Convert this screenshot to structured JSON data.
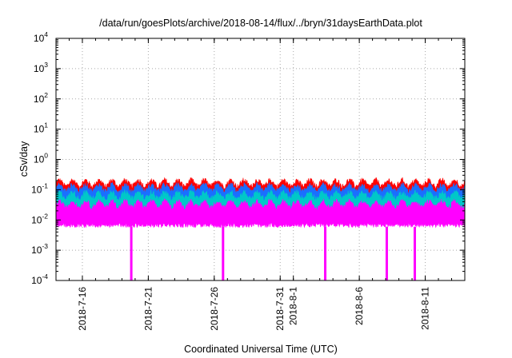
{
  "chart_data": {
    "type": "line",
    "title": "/data/run/goesPlots/archive/2018-08-14/flux/../bryn/31daysEarthData.plot",
    "xlabel": "Coordinated Universal Time (UTC)",
    "ylabel": "cSv/day",
    "y_scale": "log",
    "ylim": [
      0.0001,
      10000
    ],
    "y_ticks": [
      {
        "base": "10",
        "exp": "-4",
        "value": 0.0001
      },
      {
        "base": "10",
        "exp": "-3",
        "value": 0.001
      },
      {
        "base": "10",
        "exp": "-2",
        "value": 0.01
      },
      {
        "base": "10",
        "exp": "-1",
        "value": 0.1
      },
      {
        "base": "10",
        "exp": "0",
        "value": 1
      },
      {
        "base": "10",
        "exp": "1",
        "value": 10
      },
      {
        "base": "10",
        "exp": "2",
        "value": 100
      },
      {
        "base": "10",
        "exp": "3",
        "value": 1000
      },
      {
        "base": "10",
        "exp": "4",
        "value": 10000
      }
    ],
    "xlim": [
      "2018-07-14",
      "2018-08-14"
    ],
    "x_ticks": [
      {
        "label": "2018-7-16",
        "date": "2018-07-16"
      },
      {
        "label": "2018-7-21",
        "date": "2018-07-21"
      },
      {
        "label": "2018-7-26",
        "date": "2018-07-26"
      },
      {
        "label": "2018-7-31",
        "date": "2018-07-31"
      },
      {
        "label": "2018-8-1",
        "date": "2018-08-01"
      },
      {
        "label": "2018-8-6",
        "date": "2018-08-06"
      },
      {
        "label": "2018-8-11",
        "date": "2018-08-11"
      }
    ],
    "grid": true,
    "series": [
      {
        "color": "#ff0000",
        "typical_value": 0.1
      },
      {
        "color": "#1a6fff",
        "typical_value": 0.07
      },
      {
        "color": "#00c8c8",
        "typical_value": 0.04
      },
      {
        "color": "#ff00ff",
        "typical_value": 0.02
      }
    ],
    "dips": [
      {
        "date": "2018-07-19T17:00",
        "value": 0.0001
      },
      {
        "date": "2018-07-26T16:00",
        "value": 0.0001
      },
      {
        "date": "2018-08-03T10:00",
        "value": 0.0001
      },
      {
        "date": "2018-08-08T02:00",
        "value": 0.0001
      },
      {
        "date": "2018-08-10T05:00",
        "value": 0.0001
      }
    ]
  }
}
